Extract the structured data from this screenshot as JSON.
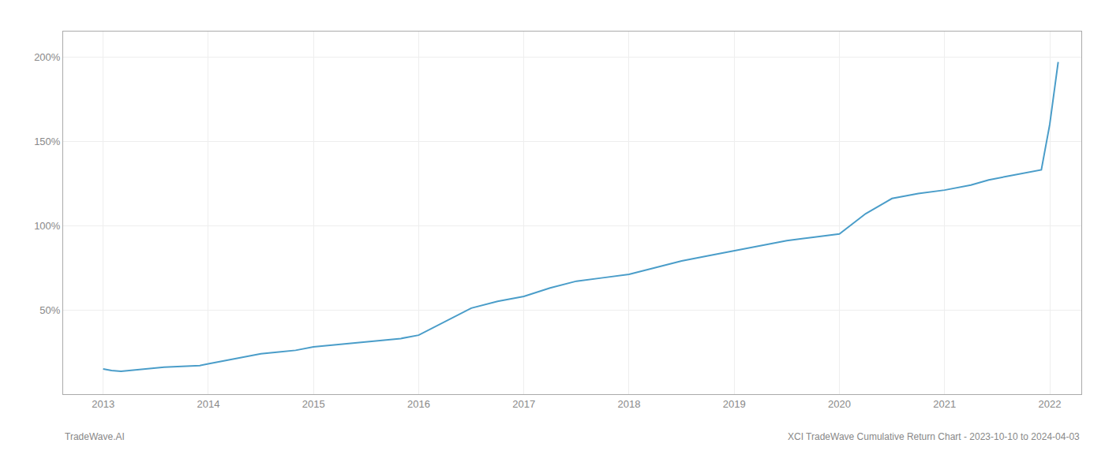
{
  "chart_data": {
    "type": "line",
    "x": [
      2013.0,
      2013.08,
      2013.17,
      2013.25,
      2013.42,
      2013.58,
      2013.75,
      2013.92,
      2014.0,
      2014.17,
      2014.33,
      2014.5,
      2014.67,
      2014.83,
      2015.0,
      2015.17,
      2015.33,
      2015.5,
      2015.67,
      2015.83,
      2016.0,
      2016.25,
      2016.5,
      2016.75,
      2017.0,
      2017.25,
      2017.5,
      2017.75,
      2018.0,
      2018.25,
      2018.5,
      2018.75,
      2019.0,
      2019.25,
      2019.5,
      2019.75,
      2020.0,
      2020.25,
      2020.5,
      2020.75,
      2021.0,
      2021.25,
      2021.42,
      2021.58,
      2021.75,
      2021.92,
      2022.0,
      2022.08
    ],
    "values": [
      15,
      14,
      13.5,
      14,
      15,
      16,
      16.5,
      17,
      18,
      20,
      22,
      24,
      25,
      26,
      28,
      29,
      30,
      31,
      32,
      33,
      35,
      43,
      51,
      55,
      58,
      63,
      67,
      69,
      71,
      75,
      79,
      82,
      85,
      88,
      91,
      93,
      95,
      107,
      116,
      119,
      121,
      124,
      127,
      129,
      131,
      133,
      160,
      197
    ],
    "color": "#4a9dc9",
    "xlim": [
      2012.62,
      2022.3
    ],
    "xticks": [
      2013,
      2014,
      2015,
      2016,
      2017,
      2018,
      2019,
      2020,
      2021,
      2022
    ],
    "ylim": [
      0,
      215
    ],
    "yticks": [
      {
        "value": 50,
        "label": "50%"
      },
      {
        "value": 100,
        "label": "100%"
      },
      {
        "value": 150,
        "label": "150%"
      },
      {
        "value": 200,
        "label": "200%"
      }
    ],
    "grid": true,
    "annotations": [
      "TradeWave.AI",
      "XCI TradeWave Cumulative Return Chart - 2023-10-10 to 2024-04-03"
    ]
  }
}
